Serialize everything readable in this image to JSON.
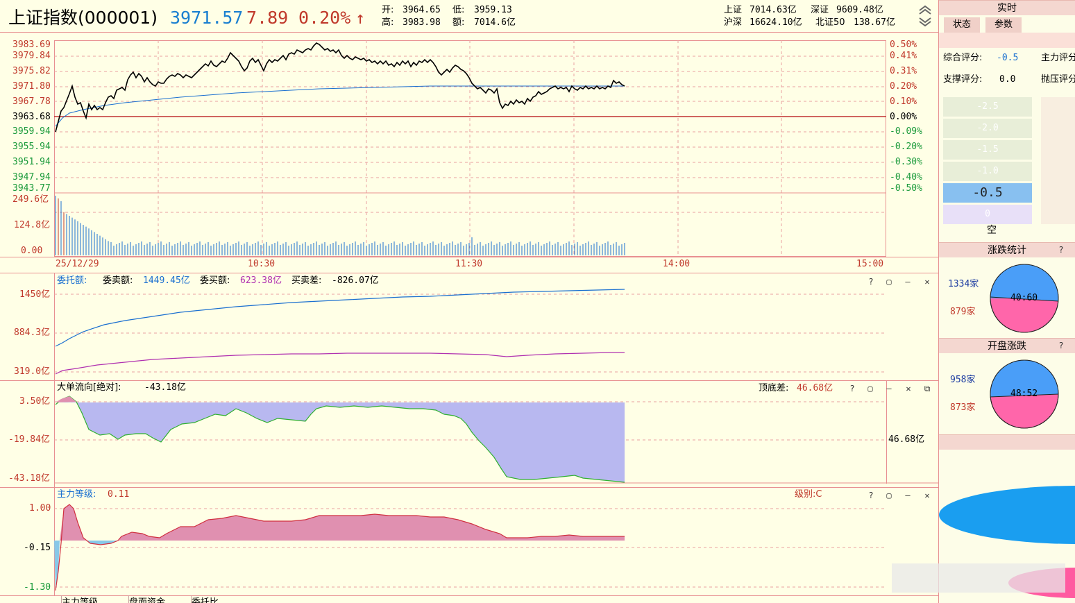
{
  "header": {
    "title": "上证指数(000001)",
    "price": "3971.57",
    "change": "7.89",
    "change_pct": "0.20%",
    "arrow": "↑",
    "open_label": "开:",
    "open": "3964.65",
    "low_label": "低:",
    "low": "3959.13",
    "high_label": "高:",
    "high": "3983.98",
    "amount_label": "额:",
    "amount": "7014.6亿",
    "sh_label": "上证",
    "sh": "7014.63亿",
    "sz_label": "深证",
    "sz": "9609.48亿",
    "hs_label": "沪深",
    "hs": "16624.10亿",
    "bz_label": "北证50",
    "bz": "138.67亿"
  },
  "price_axis": {
    "left": [
      "3983.69",
      "3979.84",
      "3975.82",
      "3971.80",
      "3967.78",
      "3963.68",
      "3959.94",
      "3955.94",
      "3951.94",
      "3947.94",
      "3943.77"
    ],
    "right": [
      "0.50%",
      "0.41%",
      "0.31%",
      "0.20%",
      "0.10%",
      "0.00%",
      "-0.09%",
      "-0.20%",
      "-0.30%",
      "-0.40%",
      "-0.50%"
    ]
  },
  "volume_axis": [
    "249.6亿",
    "124.8亿",
    "0.00"
  ],
  "time_axis": {
    "date": "25/12/29",
    "t1": "10:30",
    "t2": "11:30",
    "t3": "14:00",
    "t4": "15:00"
  },
  "panel_entrust": {
    "name": "委托额:",
    "sell_label": "委卖额:",
    "sell": "1449.45亿",
    "buy_label": "委买额:",
    "buy": "623.38亿",
    "diff_label": "买卖差:",
    "diff": "-826.07亿",
    "y": [
      "1450亿",
      "884.3亿",
      "319.0亿"
    ]
  },
  "panel_bigorder": {
    "name": "大单流向[绝对]:",
    "value": "-43.18亿",
    "diff_label": "顶底差:",
    "diff": "46.68亿",
    "right_label": "46.68亿",
    "y": [
      "3.50亿",
      "-19.84亿",
      "-43.18亿"
    ]
  },
  "panel_level": {
    "name": "主力等级:",
    "value": "0.11",
    "grade_label": "级别:C",
    "y": [
      "1.00",
      "-0.15",
      "-1.30"
    ]
  },
  "bottom_tabs": [
    "主力等级",
    "盘面资金",
    "委托比"
  ],
  "right_panel": {
    "title": "实时",
    "tabs": [
      "状态",
      "参数"
    ],
    "score_label": "综合评分:",
    "score": "-0.5",
    "main_label": "主力评分",
    "support_label": "支撑评分:",
    "support": "0.0",
    "pressure_label": "抛压评分",
    "levels": [
      "-2.5",
      "-2.0",
      "-1.5",
      "-1.0",
      "-0.5",
      "0"
    ],
    "empty_label": "空",
    "updown_title": "涨跌统计",
    "up_count": "1334家",
    "down_count": "879家",
    "updown_ratio": "40:60",
    "open_title": "开盘涨跌",
    "open_up": "958家",
    "open_down": "873家",
    "open_ratio": "48:52",
    "help": "?"
  },
  "colors": {
    "up": "#c0392b",
    "blue": "#1a7fd0",
    "purple": "#b8b8f0",
    "pink": "#e090b0",
    "grid": "#e89090"
  }
}
